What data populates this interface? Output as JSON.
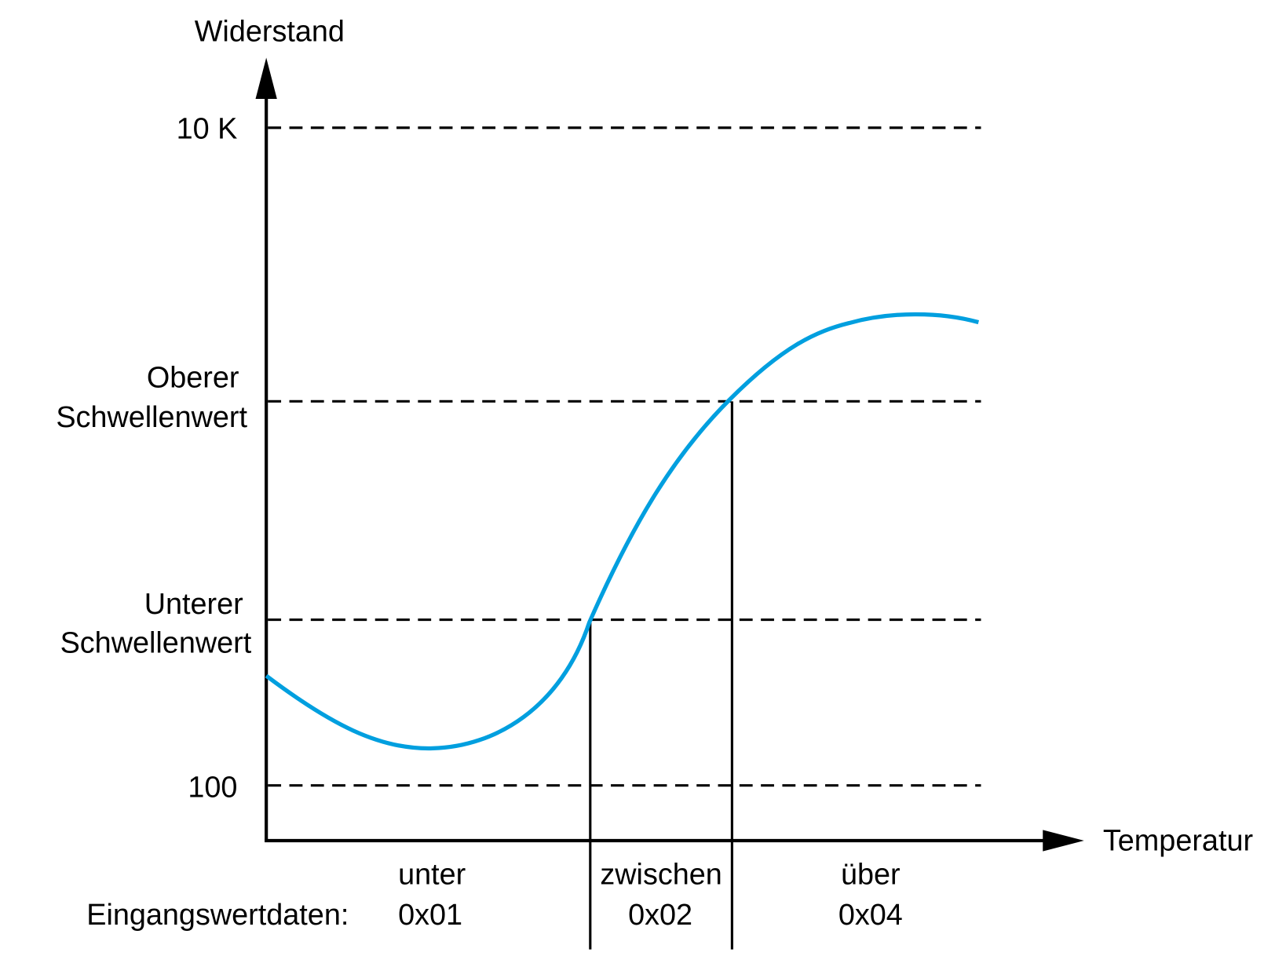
{
  "y_axis": {
    "label": "Widerstand",
    "ticks": [
      "10 K",
      "100"
    ]
  },
  "x_axis": {
    "label": "Temperatur"
  },
  "thresholds": {
    "upper": [
      "Oberer",
      "Schwellenwert"
    ],
    "lower": [
      "Unterer",
      "Schwellenwert"
    ]
  },
  "regions": [
    {
      "name": "unter",
      "value": "0x01"
    },
    {
      "name": "zwischen",
      "value": "0x02"
    },
    {
      "name": "über",
      "value": "0x04"
    }
  ],
  "input_label": "Eingangswertdaten:",
  "colors": {
    "curve": "#009FDF",
    "axis": "#000000"
  }
}
